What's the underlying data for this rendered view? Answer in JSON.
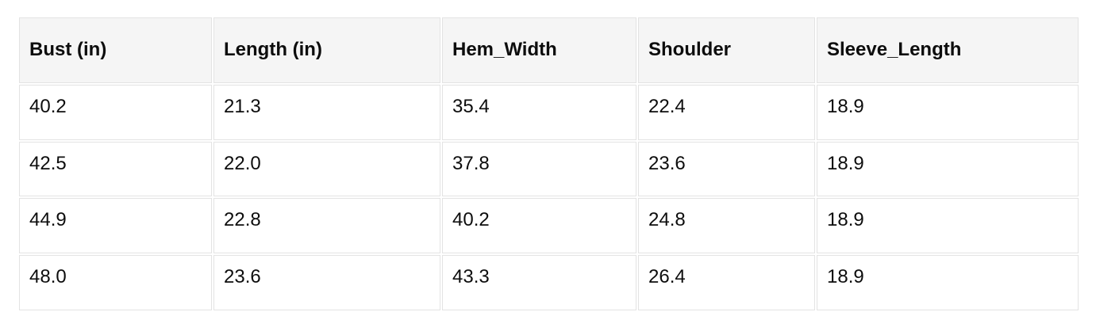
{
  "table": {
    "columns": [
      "Bust (in)",
      "Length (in)",
      "Hem_Width",
      "Shoulder",
      "Sleeve_Length"
    ],
    "rows": [
      [
        "40.2",
        "21.3",
        "35.4",
        "22.4",
        "18.9"
      ],
      [
        "42.5",
        "22.0",
        "37.8",
        "23.6",
        "18.9"
      ],
      [
        "44.9",
        "22.8",
        "40.2",
        "24.8",
        "18.9"
      ],
      [
        "48.0",
        "23.6",
        "43.3",
        "26.4",
        "18.9"
      ]
    ]
  },
  "colors": {
    "header_bg": "#f5f5f5",
    "cell_bg": "#ffffff",
    "border": "#e3e3e3",
    "text": "#0d0d0d",
    "page_bg": "#ffffff"
  },
  "chart_data": {
    "type": "table",
    "title": "",
    "columns": [
      "Bust (in)",
      "Length (in)",
      "Hem_Width",
      "Shoulder",
      "Sleeve_Length"
    ],
    "rows": [
      [
        40.2,
        21.3,
        35.4,
        22.4,
        18.9
      ],
      [
        42.5,
        22.0,
        37.8,
        23.6,
        18.9
      ],
      [
        44.9,
        22.8,
        40.2,
        24.8,
        18.9
      ],
      [
        48.0,
        23.6,
        43.3,
        26.4,
        18.9
      ]
    ]
  }
}
